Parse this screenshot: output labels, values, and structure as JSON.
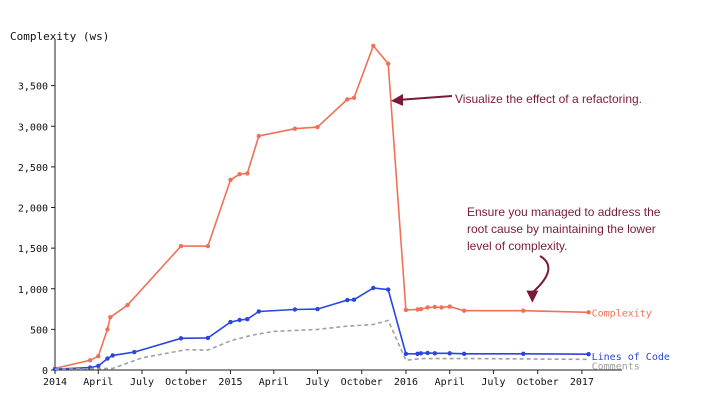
{
  "chart_data": {
    "type": "line",
    "ylabel": "Complexity (ws)",
    "ylim": [
      0,
      4000
    ],
    "xlim": [
      "2014-01-01",
      "2017-03-15"
    ],
    "y_ticks": [
      0,
      500,
      1000,
      1500,
      2000,
      2500,
      3000,
      3500
    ],
    "y_tick_labels": [
      "0",
      "500",
      "1,000",
      "1,500",
      "2,000",
      "2,500",
      "3,000",
      "3,500"
    ],
    "x_ticks": [
      "2014-01-01",
      "2014-04-01",
      "2014-07-01",
      "2014-10-01",
      "2015-01-01",
      "2015-04-01",
      "2015-07-01",
      "2015-10-01",
      "2016-01-01",
      "2016-04-01",
      "2016-07-01",
      "2016-10-01",
      "2017-01-01"
    ],
    "x_tick_labels": [
      "2014",
      "April",
      "July",
      "October",
      "2015",
      "April",
      "July",
      "October",
      "2016",
      "April",
      "July",
      "October",
      "2017"
    ],
    "grid": false,
    "series": [
      {
        "name": "Complexity",
        "color": "#f07058",
        "style": "solid",
        "points": [
          [
            "2014-01-01",
            20
          ],
          [
            "2014-03-15",
            120
          ],
          [
            "2014-04-01",
            170
          ],
          [
            "2014-04-20",
            500
          ],
          [
            "2014-04-26",
            650
          ],
          [
            "2014-06-01",
            800
          ],
          [
            "2014-09-20",
            1525
          ],
          [
            "2014-11-15",
            1525
          ],
          [
            "2015-01-01",
            2340
          ],
          [
            "2015-01-20",
            2410
          ],
          [
            "2015-02-05",
            2420
          ],
          [
            "2015-03-01",
            2880
          ],
          [
            "2015-05-15",
            2970
          ],
          [
            "2015-07-01",
            2990
          ],
          [
            "2015-09-01",
            3330
          ],
          [
            "2015-09-15",
            3350
          ],
          [
            "2015-10-25",
            3990
          ],
          [
            "2015-11-25",
            3770
          ],
          [
            "2016-01-01",
            740
          ],
          [
            "2016-01-25",
            745
          ],
          [
            "2016-02-01",
            750
          ],
          [
            "2016-02-15",
            770
          ],
          [
            "2016-03-01",
            775
          ],
          [
            "2016-03-15",
            770
          ],
          [
            "2016-04-01",
            780
          ],
          [
            "2016-05-01",
            730
          ],
          [
            "2016-09-01",
            730
          ],
          [
            "2017-01-15",
            710
          ]
        ]
      },
      {
        "name": "Lines of Code",
        "color": "#2a45e0",
        "style": "solid",
        "points": [
          [
            "2014-01-01",
            10
          ],
          [
            "2014-03-15",
            30
          ],
          [
            "2014-04-01",
            50
          ],
          [
            "2014-04-20",
            140
          ],
          [
            "2014-05-01",
            180
          ],
          [
            "2014-06-15",
            220
          ],
          [
            "2014-09-20",
            390
          ],
          [
            "2014-11-15",
            395
          ],
          [
            "2015-01-01",
            590
          ],
          [
            "2015-01-20",
            615
          ],
          [
            "2015-02-05",
            625
          ],
          [
            "2015-03-01",
            720
          ],
          [
            "2015-05-15",
            745
          ],
          [
            "2015-07-01",
            750
          ],
          [
            "2015-09-01",
            860
          ],
          [
            "2015-09-15",
            865
          ],
          [
            "2015-10-25",
            1010
          ],
          [
            "2015-11-25",
            990
          ],
          [
            "2016-01-01",
            200
          ],
          [
            "2016-01-25",
            200
          ],
          [
            "2016-02-01",
            205
          ],
          [
            "2016-02-15",
            210
          ],
          [
            "2016-03-01",
            205
          ],
          [
            "2016-04-01",
            205
          ],
          [
            "2016-05-01",
            200
          ],
          [
            "2016-09-01",
            200
          ],
          [
            "2017-01-15",
            195
          ]
        ]
      },
      {
        "name": "Comments",
        "color": "#a0a0a0",
        "style": "dashed",
        "points": [
          [
            "2014-01-01",
            10
          ],
          [
            "2014-05-01",
            20
          ],
          [
            "2014-07-01",
            150
          ],
          [
            "2014-10-01",
            250
          ],
          [
            "2014-11-15",
            245
          ],
          [
            "2015-01-01",
            360
          ],
          [
            "2015-02-15",
            430
          ],
          [
            "2015-04-01",
            475
          ],
          [
            "2015-07-01",
            500
          ],
          [
            "2015-09-01",
            540
          ],
          [
            "2015-10-25",
            560
          ],
          [
            "2015-11-25",
            610
          ],
          [
            "2016-01-01",
            120
          ],
          [
            "2016-02-01",
            140
          ],
          [
            "2016-06-01",
            140
          ],
          [
            "2017-01-15",
            130
          ]
        ]
      }
    ],
    "annotations": [
      {
        "text": "Visualize the effect of a refactoring.",
        "color": "#7a1a3a",
        "target": [
          "2015-12-01",
          3300
        ]
      },
      {
        "text": "Ensure you managed to address the root cause by maintaining the lower level of complexity.",
        "lines": [
          "Ensure you managed to address the",
          "root cause by maintaining the lower",
          "level of complexity."
        ],
        "color": "#7a1a3a",
        "target": [
          "2016-09-20",
          830
        ]
      }
    ]
  }
}
